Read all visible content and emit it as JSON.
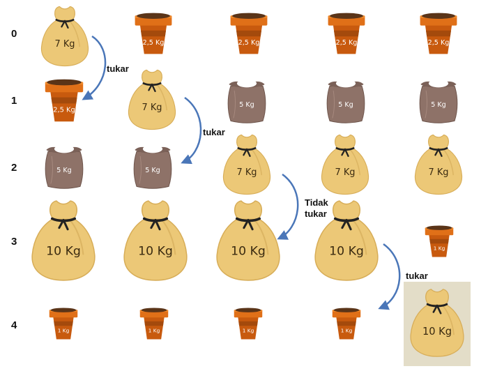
{
  "rows": [
    "0",
    "1",
    "2",
    "3",
    "4"
  ],
  "grid": [
    [
      {
        "type": "gold",
        "label": "7 Kg"
      },
      {
        "type": "pot",
        "label": "2,5 Kg"
      },
      {
        "type": "pot",
        "label": "2,5 Kg"
      },
      {
        "type": "pot",
        "label": "2,5 Kg"
      },
      {
        "type": "pot",
        "label": "2,5 Kg"
      }
    ],
    [
      {
        "type": "pot",
        "label": "2,5 Kg"
      },
      {
        "type": "gold",
        "label": "7 Kg"
      },
      {
        "type": "gray",
        "label": "5 Kg"
      },
      {
        "type": "gray",
        "label": "5 Kg"
      },
      {
        "type": "gray",
        "label": "5 Kg"
      }
    ],
    [
      {
        "type": "gray",
        "label": "5 Kg"
      },
      {
        "type": "gray",
        "label": "5 Kg"
      },
      {
        "type": "gold",
        "label": "7 Kg"
      },
      {
        "type": "gold",
        "label": "7 Kg"
      },
      {
        "type": "gold",
        "label": "7 Kg"
      }
    ],
    [
      {
        "type": "gold",
        "label": "10 Kg"
      },
      {
        "type": "gold",
        "label": "10 Kg"
      },
      {
        "type": "gold",
        "label": "10 Kg"
      },
      {
        "type": "gold",
        "label": "10 Kg"
      },
      {
        "type": "pot",
        "label": "1 Kg"
      }
    ],
    [
      {
        "type": "pot",
        "label": "1 Kg"
      },
      {
        "type": "pot",
        "label": "1 Kg"
      },
      {
        "type": "pot",
        "label": "1 Kg"
      },
      {
        "type": "pot",
        "label": "1 Kg"
      },
      {
        "type": "gold",
        "label": "10 Kg",
        "highlight": true
      }
    ]
  ],
  "notes": {
    "n1": "tukar",
    "n2": "tukar",
    "n3_line1": "Tidak",
    "n3_line2": "tukar",
    "n4": "tukar"
  },
  "colors": {
    "gold_sack": "#ecc877",
    "gray_sack": "#8e7268",
    "pot": "#c85a0e",
    "arrow": "#4a76b8",
    "highlight_bg": "#e3ddc8"
  }
}
